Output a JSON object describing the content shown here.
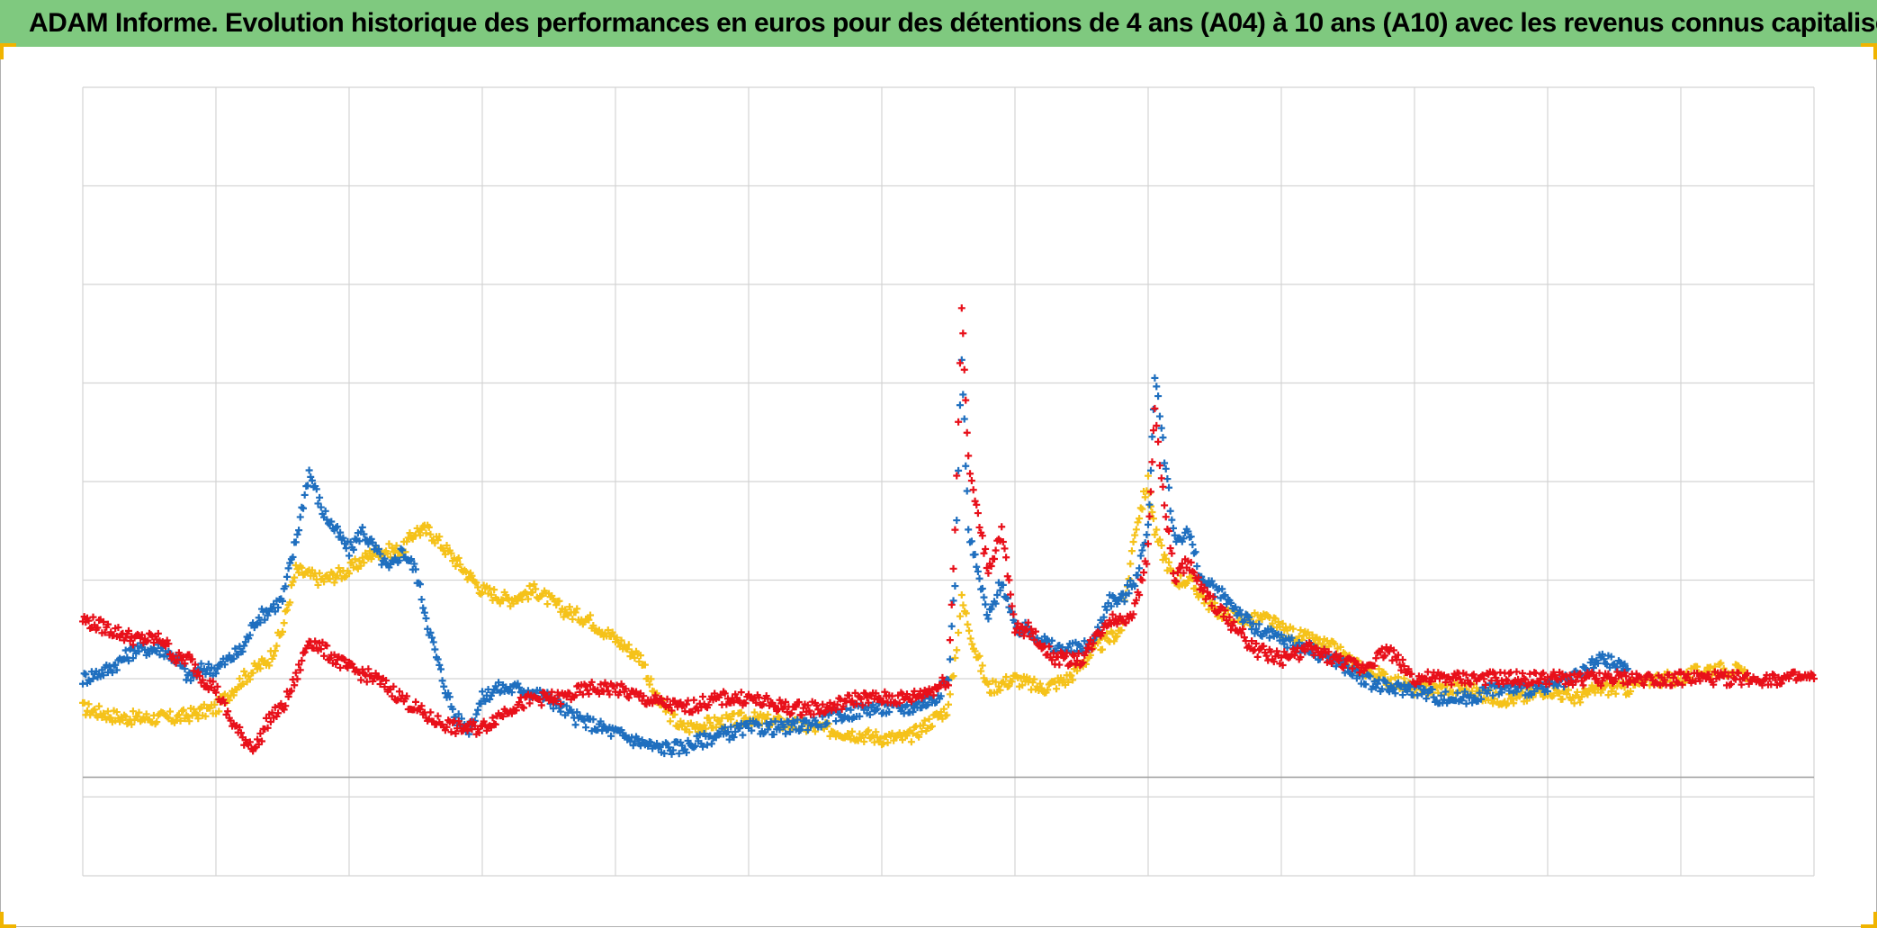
{
  "title": "ADAM Informe. Evolution historique des performances en euros pour des détentions de 4 ans (A04) à 10 ans (A10) avec les revenus connus capitalisés",
  "colors": {
    "title_bg": "#7fc97f",
    "series_blue": "#1f6fbf",
    "series_red": "#e8101a",
    "series_yellow": "#f5c21a",
    "grid": "#d4d4d4",
    "zero_line": "#a0a0a0"
  },
  "chart_data": {
    "type": "scatter",
    "title": "ADAM Informe. Evolution historique des performances en euros pour des détentions de 4 ans (A04) à 10 ans (A10) avec les revenus connus capitalisés",
    "xlabel": "",
    "ylabel": "",
    "xlim": [
      0,
      13
    ],
    "ylim": [
      -1,
      7
    ],
    "grid": true,
    "legend": "none",
    "series": [
      {
        "color": "#f5c21a",
        "marker": "+",
        "points": [
          [
            0,
            0.7
          ],
          [
            0.3,
            0.6
          ],
          [
            0.7,
            0.6
          ],
          [
            1.0,
            0.7
          ],
          [
            1.2,
            1.0
          ],
          [
            1.4,
            1.2
          ],
          [
            1.5,
            1.5
          ],
          [
            1.6,
            2.1
          ],
          [
            1.8,
            2.0
          ],
          [
            2.0,
            2.1
          ],
          [
            2.2,
            2.3
          ],
          [
            2.4,
            2.3
          ],
          [
            2.5,
            2.5
          ],
          [
            2.6,
            2.5
          ],
          [
            2.8,
            2.2
          ],
          [
            3.0,
            1.9
          ],
          [
            3.2,
            1.8
          ],
          [
            3.4,
            1.9
          ],
          [
            3.6,
            1.7
          ],
          [
            3.8,
            1.6
          ],
          [
            4.0,
            1.4
          ],
          [
            4.2,
            1.2
          ],
          [
            4.3,
            0.8
          ],
          [
            4.5,
            0.5
          ],
          [
            5.0,
            0.6
          ],
          [
            5.5,
            0.5
          ],
          [
            6.0,
            0.4
          ],
          [
            6.2,
            0.4
          ],
          [
            6.3,
            0.5
          ],
          [
            6.5,
            0.7
          ],
          [
            6.55,
            1.2
          ],
          [
            6.6,
            1.8
          ],
          [
            6.7,
            1.3
          ],
          [
            6.8,
            0.9
          ],
          [
            7.0,
            1.0
          ],
          [
            7.2,
            0.9
          ],
          [
            7.4,
            1.0
          ],
          [
            7.6,
            1.3
          ],
          [
            7.8,
            1.5
          ],
          [
            7.9,
            2.5
          ],
          [
            8.0,
            3.0
          ],
          [
            8.05,
            2.5
          ],
          [
            8.1,
            2.3
          ],
          [
            8.2,
            2.0
          ],
          [
            8.3,
            2.0
          ],
          [
            8.5,
            1.7
          ],
          [
            8.7,
            1.6
          ],
          [
            8.9,
            1.6
          ],
          [
            9.0,
            1.5
          ],
          [
            9.2,
            1.4
          ],
          [
            9.4,
            1.3
          ],
          [
            9.6,
            1.1
          ],
          [
            9.8,
            1.0
          ],
          [
            10.0,
            0.9
          ],
          [
            10.2,
            0.9
          ],
          [
            10.4,
            0.9
          ],
          [
            10.6,
            0.8
          ],
          [
            10.8,
            0.8
          ],
          [
            11.0,
            0.9
          ],
          [
            11.2,
            0.8
          ],
          [
            11.4,
            0.9
          ],
          [
            11.6,
            0.9
          ],
          [
            11.8,
            1.0
          ],
          [
            12.0,
            1.0
          ],
          [
            12.2,
            1.1
          ],
          [
            12.4,
            1.1
          ],
          [
            12.5,
            1.0
          ]
        ]
      },
      {
        "color": "#1f6fbf",
        "marker": "+",
        "points": [
          [
            0,
            1.0
          ],
          [
            0.2,
            1.1
          ],
          [
            0.4,
            1.3
          ],
          [
            0.6,
            1.3
          ],
          [
            0.7,
            1.2
          ],
          [
            0.8,
            1.0
          ],
          [
            0.9,
            1.1
          ],
          [
            1.0,
            1.1
          ],
          [
            1.2,
            1.3
          ],
          [
            1.3,
            1.6
          ],
          [
            1.5,
            1.8
          ],
          [
            1.6,
            2.4
          ],
          [
            1.7,
            3.1
          ],
          [
            1.8,
            2.7
          ],
          [
            1.9,
            2.5
          ],
          [
            2.0,
            2.3
          ],
          [
            2.1,
            2.5
          ],
          [
            2.2,
            2.3
          ],
          [
            2.3,
            2.1
          ],
          [
            2.4,
            2.3
          ],
          [
            2.5,
            2.1
          ],
          [
            2.6,
            1.5
          ],
          [
            2.7,
            1.0
          ],
          [
            2.8,
            0.6
          ],
          [
            2.9,
            0.5
          ],
          [
            3.0,
            0.8
          ],
          [
            3.1,
            0.9
          ],
          [
            3.3,
            0.9
          ],
          [
            3.5,
            0.8
          ],
          [
            3.7,
            0.6
          ],
          [
            3.9,
            0.5
          ],
          [
            4.1,
            0.4
          ],
          [
            4.3,
            0.3
          ],
          [
            4.5,
            0.3
          ],
          [
            4.7,
            0.4
          ],
          [
            5.0,
            0.5
          ],
          [
            5.3,
            0.5
          ],
          [
            5.6,
            0.6
          ],
          [
            5.9,
            0.7
          ],
          [
            6.2,
            0.7
          ],
          [
            6.4,
            0.8
          ],
          [
            6.5,
            1.0
          ],
          [
            6.55,
            2.0
          ],
          [
            6.6,
            4.3
          ],
          [
            6.65,
            2.5
          ],
          [
            6.7,
            2.2
          ],
          [
            6.8,
            1.6
          ],
          [
            6.9,
            2.0
          ],
          [
            7.0,
            1.5
          ],
          [
            7.1,
            1.5
          ],
          [
            7.3,
            1.3
          ],
          [
            7.5,
            1.3
          ],
          [
            7.6,
            1.4
          ],
          [
            7.7,
            1.8
          ],
          [
            7.8,
            1.8
          ],
          [
            7.9,
            2.0
          ],
          [
            8.0,
            2.5
          ],
          [
            8.05,
            4.1
          ],
          [
            8.1,
            3.5
          ],
          [
            8.2,
            2.4
          ],
          [
            8.3,
            2.5
          ],
          [
            8.4,
            2.0
          ],
          [
            8.6,
            1.8
          ],
          [
            8.8,
            1.5
          ],
          [
            9.0,
            1.4
          ],
          [
            9.2,
            1.3
          ],
          [
            9.4,
            1.2
          ],
          [
            9.6,
            1.0
          ],
          [
            9.8,
            0.9
          ],
          [
            10.0,
            0.9
          ],
          [
            10.2,
            0.8
          ],
          [
            10.4,
            0.8
          ],
          [
            10.6,
            0.9
          ],
          [
            10.8,
            0.9
          ],
          [
            11.0,
            0.9
          ],
          [
            11.2,
            1.0
          ],
          [
            11.4,
            1.2
          ],
          [
            11.6,
            1.1
          ]
        ]
      },
      {
        "color": "#e8101a",
        "marker": "+",
        "points": [
          [
            0,
            1.6
          ],
          [
            0.2,
            1.5
          ],
          [
            0.4,
            1.4
          ],
          [
            0.6,
            1.4
          ],
          [
            0.7,
            1.2
          ],
          [
            0.8,
            1.2
          ],
          [
            0.9,
            1.0
          ],
          [
            1.0,
            0.9
          ],
          [
            1.1,
            0.6
          ],
          [
            1.2,
            0.4
          ],
          [
            1.3,
            0.3
          ],
          [
            1.4,
            0.6
          ],
          [
            1.5,
            0.7
          ],
          [
            1.6,
            1.0
          ],
          [
            1.7,
            1.4
          ],
          [
            1.8,
            1.3
          ],
          [
            2.0,
            1.1
          ],
          [
            2.2,
            1.0
          ],
          [
            2.4,
            0.8
          ],
          [
            2.6,
            0.6
          ],
          [
            2.8,
            0.5
          ],
          [
            3.0,
            0.5
          ],
          [
            3.2,
            0.7
          ],
          [
            3.4,
            0.8
          ],
          [
            3.6,
            0.8
          ],
          [
            3.8,
            0.9
          ],
          [
            4.0,
            0.9
          ],
          [
            4.2,
            0.8
          ],
          [
            4.5,
            0.7
          ],
          [
            4.8,
            0.8
          ],
          [
            5.0,
            0.8
          ],
          [
            5.3,
            0.7
          ],
          [
            5.6,
            0.7
          ],
          [
            5.8,
            0.8
          ],
          [
            6.0,
            0.8
          ],
          [
            6.2,
            0.8
          ],
          [
            6.4,
            0.9
          ],
          [
            6.5,
            1.0
          ],
          [
            6.55,
            2.5
          ],
          [
            6.6,
            4.8
          ],
          [
            6.65,
            3.2
          ],
          [
            6.7,
            2.8
          ],
          [
            6.8,
            2.1
          ],
          [
            6.9,
            2.5
          ],
          [
            7.0,
            1.5
          ],
          [
            7.1,
            1.5
          ],
          [
            7.3,
            1.2
          ],
          [
            7.5,
            1.2
          ],
          [
            7.6,
            1.4
          ],
          [
            7.7,
            1.6
          ],
          [
            7.8,
            1.6
          ],
          [
            7.9,
            1.7
          ],
          [
            8.0,
            2.3
          ],
          [
            8.05,
            3.8
          ],
          [
            8.1,
            3.0
          ],
          [
            8.2,
            2.0
          ],
          [
            8.3,
            2.2
          ],
          [
            8.4,
            1.9
          ],
          [
            8.6,
            1.6
          ],
          [
            8.8,
            1.3
          ],
          [
            9.0,
            1.2
          ],
          [
            9.2,
            1.3
          ],
          [
            9.4,
            1.2
          ],
          [
            9.6,
            1.1
          ],
          [
            9.8,
            1.3
          ],
          [
            10.0,
            1.0
          ],
          [
            10.5,
            1.0
          ],
          [
            11.0,
            1.0
          ],
          [
            11.5,
            1.0
          ],
          [
            12.0,
            1.0
          ],
          [
            12.5,
            1.0
          ],
          [
            13.0,
            1.0
          ]
        ]
      }
    ]
  }
}
